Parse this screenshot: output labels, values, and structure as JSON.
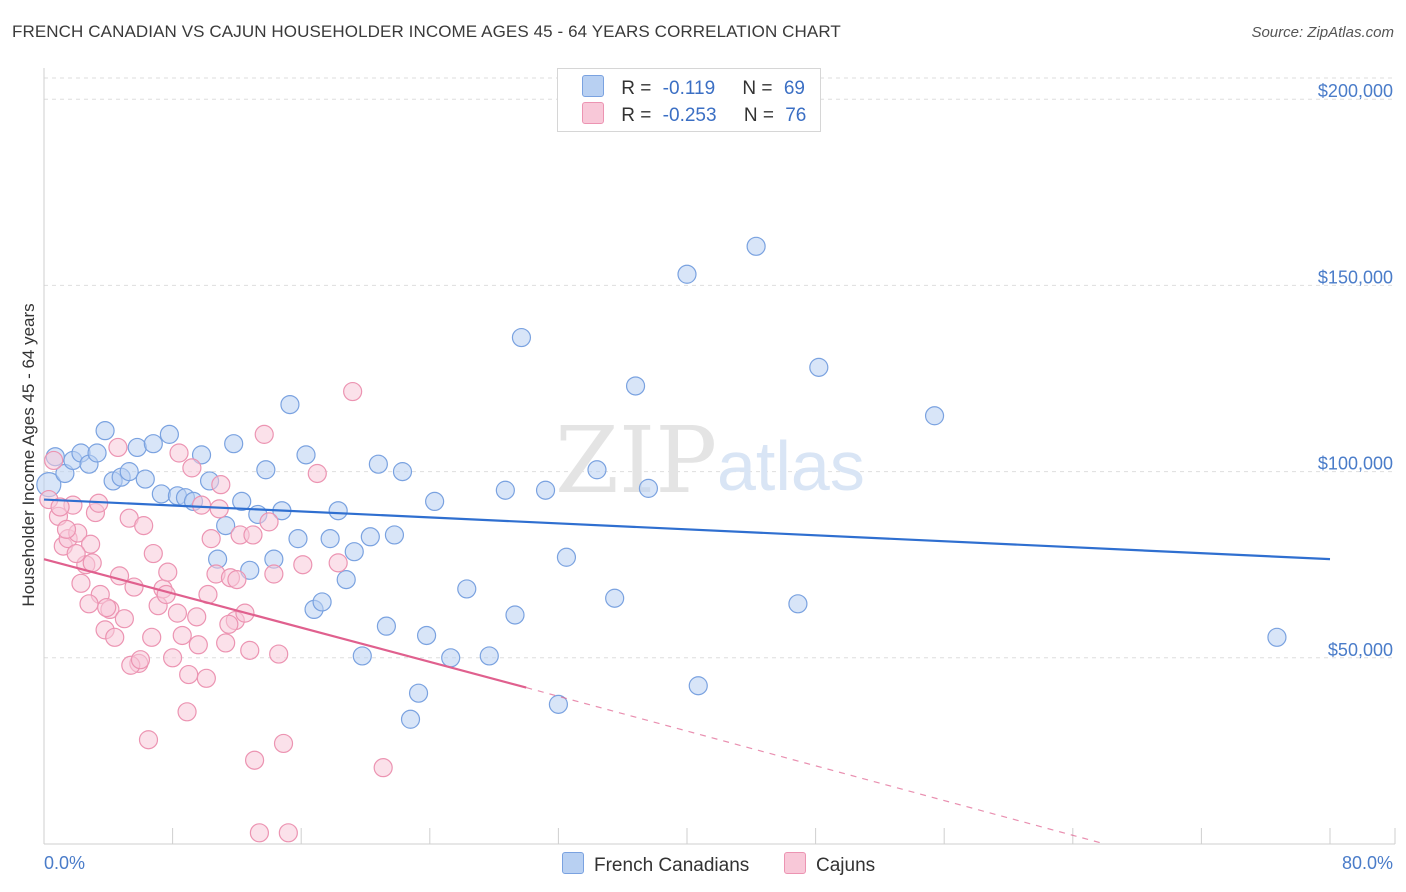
{
  "title": "FRENCH CANADIAN VS CAJUN HOUSEHOLDER INCOME AGES 45 - 64 YEARS CORRELATION CHART",
  "source": "Source: ZipAtlas.com",
  "watermark": {
    "zip": "ZIP",
    "atlas": "atlas"
  },
  "legend": {
    "series": [
      {
        "name": "French Canadians",
        "r_label": "R =",
        "r_value": "-0.119",
        "n_label": "N =",
        "n_value": "69",
        "fill": "#b8d0f2",
        "stroke": "#7aa2e0"
      },
      {
        "name": "Cajuns",
        "r_label": "R =",
        "r_value": "-0.253",
        "n_label": "N =",
        "n_value": "76",
        "fill": "#f8c8d8",
        "stroke": "#ec94b2"
      }
    ]
  },
  "chart_data": {
    "type": "scatter",
    "title": "FRENCH CANADIAN VS CAJUN HOUSEHOLDER INCOME AGES 45 - 64 YEARS CORRELATION CHART",
    "xlabel": "",
    "ylabel": "Householder Income Ages 45 - 64 years",
    "xlim": [
      0,
      80
    ],
    "ylim": [
      0,
      210000
    ],
    "x_tick_labels": [
      "0.0%",
      "80.0%"
    ],
    "y_ticks": [
      50000,
      100000,
      150000,
      200000
    ],
    "y_tick_labels": [
      "$50,000",
      "$100,000",
      "$150,000",
      "$200,000"
    ],
    "grid": true,
    "series": [
      {
        "name": "French Canadians",
        "color": "#7aa2e0",
        "fill": "#b8d0f2",
        "trend": {
          "x0": 0,
          "y0": 92500,
          "x1": 80,
          "y1": 76500,
          "dashed_to": null
        },
        "points": [
          [
            0.3,
            96500
          ],
          [
            0.7,
            104000
          ],
          [
            1.3,
            99500
          ],
          [
            1.8,
            103000
          ],
          [
            2.3,
            105000
          ],
          [
            2.8,
            102000
          ],
          [
            3.3,
            105000
          ],
          [
            3.8,
            111000
          ],
          [
            4.3,
            97500
          ],
          [
            4.8,
            98500
          ],
          [
            5.3,
            100000
          ],
          [
            5.8,
            106500
          ],
          [
            6.3,
            98000
          ],
          [
            6.8,
            107500
          ],
          [
            7.3,
            94000
          ],
          [
            7.8,
            110000
          ],
          [
            8.3,
            93500
          ],
          [
            8.8,
            93000
          ],
          [
            9.3,
            92000
          ],
          [
            9.8,
            104500
          ],
          [
            10.3,
            97500
          ],
          [
            10.8,
            76500
          ],
          [
            11.3,
            85500
          ],
          [
            11.8,
            107500
          ],
          [
            12.3,
            92000
          ],
          [
            12.8,
            73500
          ],
          [
            13.3,
            88500
          ],
          [
            13.8,
            100500
          ],
          [
            14.3,
            76500
          ],
          [
            14.8,
            89500
          ],
          [
            15.3,
            118000
          ],
          [
            15.8,
            82000
          ],
          [
            16.3,
            104500
          ],
          [
            16.8,
            63000
          ],
          [
            17.3,
            65000
          ],
          [
            17.8,
            82000
          ],
          [
            18.3,
            89500
          ],
          [
            18.8,
            71000
          ],
          [
            19.3,
            78500
          ],
          [
            19.8,
            50500
          ],
          [
            20.3,
            82500
          ],
          [
            20.8,
            102000
          ],
          [
            21.3,
            58500
          ],
          [
            21.8,
            83000
          ],
          [
            22.3,
            100000
          ],
          [
            22.8,
            33500
          ],
          [
            23.3,
            40500
          ],
          [
            23.8,
            56000
          ],
          [
            24.3,
            92000
          ],
          [
            25.3,
            50000
          ],
          [
            26.3,
            68500
          ],
          [
            27.7,
            50500
          ],
          [
            28.7,
            95000
          ],
          [
            29.3,
            61500
          ],
          [
            29.7,
            136000
          ],
          [
            31.2,
            95000
          ],
          [
            32.0,
            37500
          ],
          [
            32.5,
            77000
          ],
          [
            34.4,
            100500
          ],
          [
            35.5,
            66000
          ],
          [
            36.8,
            123000
          ],
          [
            37.6,
            95500
          ],
          [
            40.0,
            153000
          ],
          [
            40.7,
            42500
          ],
          [
            44.3,
            160500
          ],
          [
            46.9,
            64500
          ],
          [
            48.2,
            128000
          ],
          [
            55.4,
            115000
          ],
          [
            76.7,
            55500
          ]
        ]
      },
      {
        "name": "Cajuns",
        "color": "#ec94b2",
        "fill": "#f8c8d8",
        "trend": {
          "x0": 0,
          "y0": 76500,
          "x1": 30,
          "y1": 42000,
          "dashed_to": {
            "x": 66,
            "y": 0
          }
        },
        "points": [
          [
            0.3,
            92500
          ],
          [
            0.6,
            103000
          ],
          [
            0.9,
            88000
          ],
          [
            1.2,
            80000
          ],
          [
            1.5,
            82000
          ],
          [
            1.8,
            91000
          ],
          [
            2.1,
            83500
          ],
          [
            2.3,
            70000
          ],
          [
            2.6,
            75000
          ],
          [
            2.9,
            80500
          ],
          [
            3.2,
            89000
          ],
          [
            3.5,
            67000
          ],
          [
            3.8,
            57500
          ],
          [
            4.1,
            63000
          ],
          [
            4.4,
            55500
          ],
          [
            4.7,
            72000
          ],
          [
            5.0,
            60500
          ],
          [
            5.3,
            87500
          ],
          [
            5.6,
            69000
          ],
          [
            5.9,
            48500
          ],
          [
            6.2,
            85500
          ],
          [
            6.5,
            28000
          ],
          [
            6.8,
            78000
          ],
          [
            7.1,
            64000
          ],
          [
            7.4,
            68500
          ],
          [
            7.7,
            73000
          ],
          [
            8.0,
            50000
          ],
          [
            8.3,
            62000
          ],
          [
            8.6,
            56000
          ],
          [
            8.9,
            35500
          ],
          [
            9.2,
            101000
          ],
          [
            9.5,
            61000
          ],
          [
            9.8,
            91000
          ],
          [
            10.1,
            44500
          ],
          [
            10.4,
            82000
          ],
          [
            10.7,
            72500
          ],
          [
            11.0,
            96500
          ],
          [
            11.3,
            54000
          ],
          [
            11.6,
            71500
          ],
          [
            11.9,
            60000
          ],
          [
            12.2,
            83000
          ],
          [
            12.5,
            62000
          ],
          [
            12.8,
            52000
          ],
          [
            13.1,
            22500
          ],
          [
            13.4,
            3000
          ],
          [
            13.7,
            110000
          ],
          [
            14.0,
            86500
          ],
          [
            14.3,
            72500
          ],
          [
            14.6,
            51000
          ],
          [
            14.9,
            27000
          ],
          [
            15.2,
            3000
          ],
          [
            16.1,
            75000
          ],
          [
            17.0,
            99500
          ],
          [
            18.3,
            75500
          ],
          [
            19.2,
            121500
          ],
          [
            21.1,
            20500
          ],
          [
            1.0,
            90500
          ],
          [
            1.4,
            84500
          ],
          [
            2.0,
            78000
          ],
          [
            2.8,
            64500
          ],
          [
            3.0,
            75500
          ],
          [
            3.4,
            91500
          ],
          [
            3.9,
            63500
          ],
          [
            4.6,
            106500
          ],
          [
            5.4,
            48000
          ],
          [
            6.0,
            49500
          ],
          [
            6.7,
            55500
          ],
          [
            7.6,
            67000
          ],
          [
            8.4,
            105000
          ],
          [
            9.0,
            45500
          ],
          [
            9.6,
            53500
          ],
          [
            10.2,
            67000
          ],
          [
            10.9,
            90000
          ],
          [
            11.5,
            59000
          ],
          [
            12.0,
            71000
          ],
          [
            13.0,
            83000
          ]
        ]
      }
    ]
  }
}
